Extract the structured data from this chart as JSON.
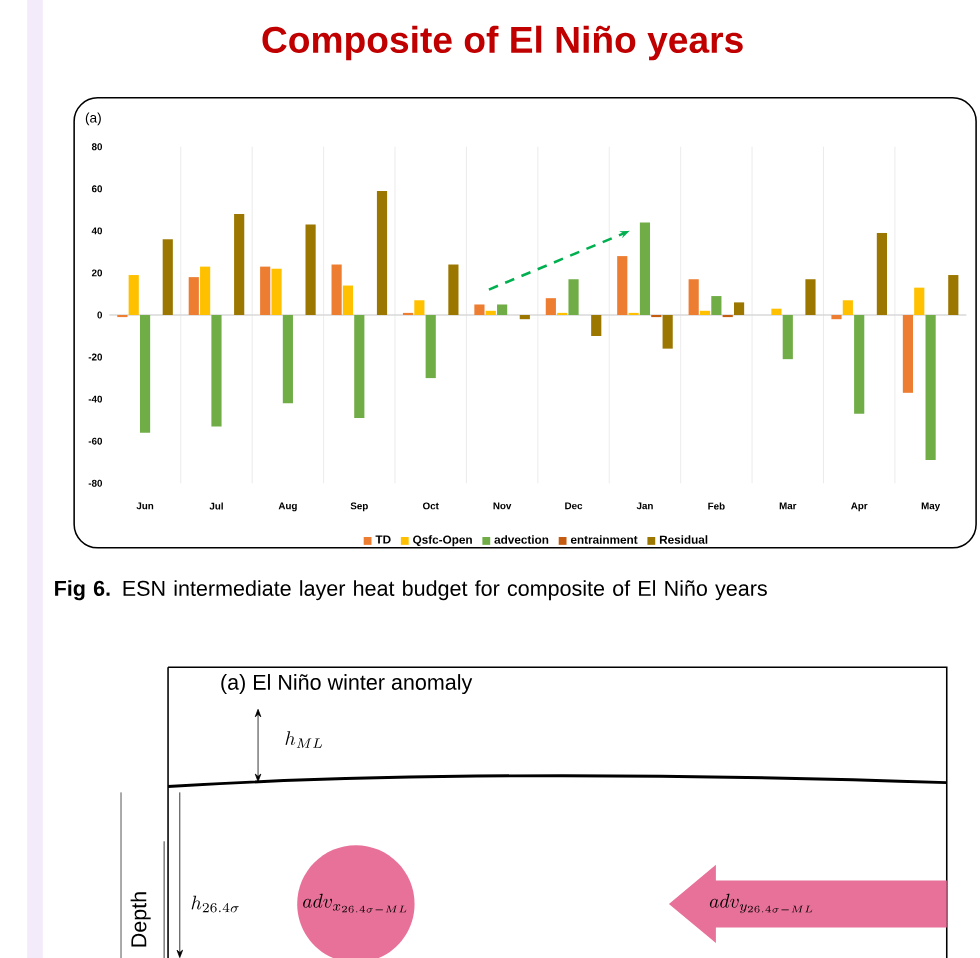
{
  "chart_data": {
    "type": "bar",
    "title": "Composite of El Niño years",
    "categories": [
      "Jun",
      "Jul",
      "Aug",
      "Sep",
      "Oct",
      "Nov",
      "Dec",
      "Jan",
      "Feb",
      "Mar",
      "Apr",
      "May"
    ],
    "series": [
      {
        "name": "TD",
        "color": "#ed7d31",
        "values": [
          -1,
          18,
          23,
          24,
          1,
          5,
          8,
          28,
          17,
          0,
          -2,
          -37
        ]
      },
      {
        "name": "Qsfc-Open",
        "color": "#ffc000",
        "values": [
          19,
          23,
          22,
          14,
          7,
          2,
          1,
          1,
          2,
          3,
          7,
          13
        ]
      },
      {
        "name": "advection",
        "color": "#70ad47",
        "values": [
          -56,
          -53,
          -42,
          -49,
          -30,
          5,
          17,
          44,
          9,
          -21,
          -47,
          -69
        ]
      },
      {
        "name": "entrainment",
        "color": "#c55a11",
        "values": [
          0,
          0,
          0,
          0,
          0,
          0,
          0,
          -1,
          -1,
          0,
          0,
          0
        ]
      },
      {
        "name": "Residual",
        "color": "#9c7700",
        "values": [
          36,
          48,
          43,
          59,
          24,
          -2,
          -10,
          -16,
          6,
          17,
          39,
          19
        ]
      }
    ],
    "ylim": [
      -80,
      80
    ],
    "yticks": [
      -80,
      -60,
      -40,
      -20,
      0,
      20,
      40,
      60,
      80
    ],
    "grid": "x",
    "legend": "bottom",
    "annotations": [
      "(a)",
      "**Fig 6.** ESN intermediate layer heat budget for composite of El Niño years",
      "(a) El Niño winter anomaly",
      "h_{ML}",
      "Depth",
      "h_{26.4\\sigma}",
      "adv_{x_{26.4\\sigma-ML}}",
      "adv_{y_{26.4\\sigma-ML}}"
    ]
  }
}
